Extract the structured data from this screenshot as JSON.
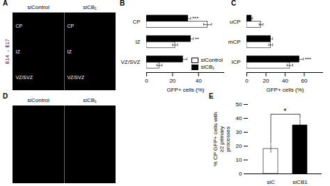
{
  "chart_data": [
    {
      "type": "image",
      "title": "A",
      "categories": [
        "siControl",
        "siCB₁"
      ],
      "ylabel": "E14 → E17",
      "annotations": [
        "CP",
        "IZ",
        "VZ/SVZ"
      ]
    },
    {
      "type": "bar",
      "title": "B",
      "orientation": "horizontal",
      "categories": [
        "CP",
        "IZ",
        "VZ/SVZ"
      ],
      "series": [
        {
          "name": "siControl",
          "color": "white",
          "values": [
            47,
            22,
            10
          ],
          "errors": [
            3,
            2,
            2
          ]
        },
        {
          "name": "siCB₁",
          "color": "black",
          "values": [
            32,
            34,
            28
          ],
          "errors": [
            2,
            2,
            3
          ]
        }
      ],
      "xlabel": "GFP+ cells (%)",
      "xlim": [
        0,
        60
      ],
      "xticks": [
        0,
        20,
        40
      ],
      "annotations": [
        {
          "text": "***",
          "category": "CP",
          "series": "siCB₁"
        },
        {
          "text": "**",
          "category": "IZ",
          "series": "siCB₁"
        }
      ],
      "legend": "lower right"
    },
    {
      "type": "bar",
      "title": "C",
      "orientation": "horizontal",
      "categories": [
        "uCP",
        "mCP",
        "lCP"
      ],
      "series": [
        {
          "name": "siControl",
          "color": "white",
          "values": [
            15,
            25,
            45
          ],
          "errors": [
            2,
            2,
            3
          ]
        },
        {
          "name": "siCB₁",
          "color": "black",
          "values": [
            5,
            25,
            55
          ],
          "errors": [
            1,
            2,
            4
          ]
        }
      ],
      "xlabel": "GFP+ cells (%)",
      "xlim": [
        0,
        80
      ],
      "xticks": [
        0,
        20,
        40,
        60
      ],
      "annotations": [
        {
          "text": "***",
          "category": "lCP",
          "series": "siCB₁"
        }
      ]
    },
    {
      "type": "image",
      "title": "D",
      "categories": [
        "siControl",
        "siCB₁"
      ]
    },
    {
      "type": "bar",
      "title": "E",
      "categories": [
        "siC",
        "siCB1"
      ],
      "values": [
        18,
        35
      ],
      "errors": [
        3,
        4
      ],
      "colors": [
        "white",
        "black"
      ],
      "ylabel": "% CP GFP+ cells with\n≥2 primary\nprocesses",
      "ylim": [
        0,
        50
      ],
      "yticks": [
        0,
        10,
        20,
        30,
        40,
        50
      ],
      "annotations": [
        {
          "text": "*",
          "categories": [
            "siC",
            "siCB1"
          ]
        }
      ]
    }
  ]
}
